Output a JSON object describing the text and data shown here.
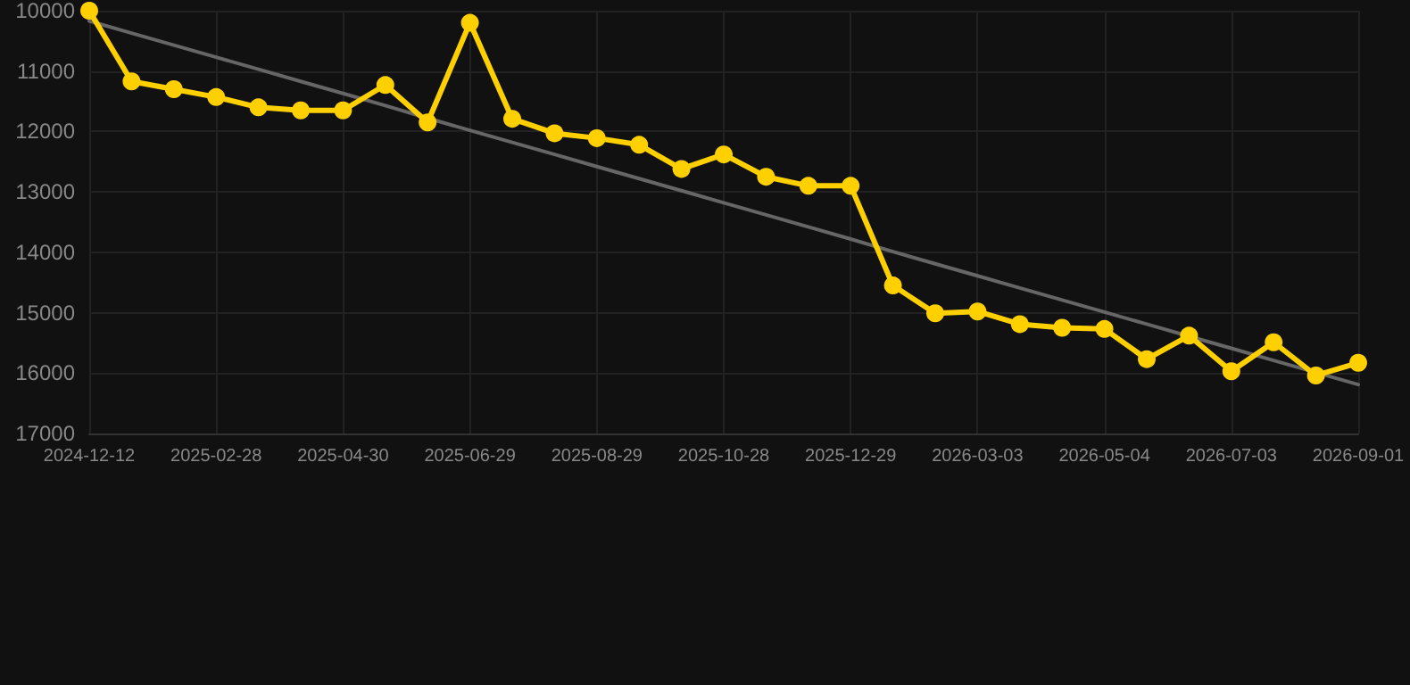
{
  "chart_data": {
    "type": "line",
    "categories": [
      "2024-12-12",
      null,
      null,
      "2025-02-28",
      null,
      null,
      "2025-04-30",
      null,
      null,
      "2025-06-29",
      null,
      null,
      "2025-08-29",
      null,
      null,
      "2025-10-28",
      null,
      null,
      "2025-12-29",
      null,
      null,
      "2026-03-03",
      null,
      null,
      "2026-05-04",
      null,
      null,
      "2026-07-03",
      null,
      null,
      "2026-09-01"
    ],
    "series": [
      {
        "color": "#ffd000",
        "marker": "circle",
        "values": [
          10000,
          11170,
          11300,
          11430,
          11600,
          11650,
          11650,
          11230,
          11850,
          10200,
          11790,
          12030,
          12110,
          12220,
          12620,
          12380,
          12750,
          12900,
          12900,
          14550,
          15010,
          14980,
          15190,
          15250,
          15270,
          15770,
          15380,
          15970,
          15490,
          16040,
          15830
        ]
      },
      {
        "type": "line",
        "color": "#666666",
        "marker": "none",
        "values": [
          10170,
          10370,
          10570,
          10770,
          10970,
          11170,
          11370,
          11570,
          11780,
          11980,
          12180,
          12380,
          12580,
          12780,
          12980,
          13180,
          13380,
          13580,
          13780,
          13990,
          14190,
          14390,
          14590,
          14790,
          14990,
          15190,
          15390,
          15590,
          15790,
          15990,
          16190
        ]
      }
    ],
    "ylim": [
      17000,
      10000
    ],
    "yticks": [
      10000,
      11000,
      12000,
      13000,
      14000,
      15000,
      16000,
      17000
    ],
    "grid": true
  }
}
